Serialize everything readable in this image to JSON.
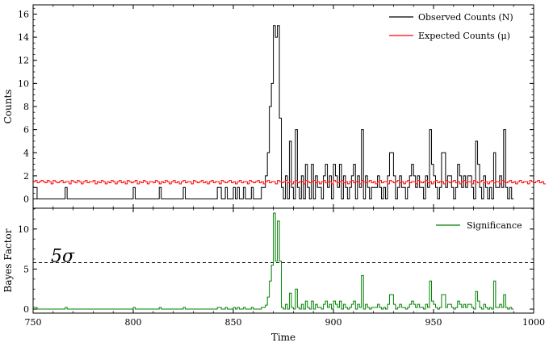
{
  "chart_data": [
    {
      "id": "top",
      "type": "line",
      "step": true,
      "ylabel": "Counts",
      "xlim": [
        750,
        1000
      ],
      "ylim": [
        -0.8,
        16.8
      ],
      "yticks": [
        0,
        2,
        4,
        6,
        8,
        10,
        12,
        14,
        16
      ],
      "x_start": 750,
      "bin_width": 1,
      "series": [
        {
          "name": "Observed Counts (N)",
          "color": "#000000",
          "values": [
            1,
            1,
            0,
            0,
            0,
            0,
            0,
            0,
            0,
            0,
            0,
            0,
            0,
            0,
            0,
            0,
            1,
            0,
            0,
            0,
            0,
            0,
            0,
            0,
            0,
            0,
            0,
            0,
            0,
            0,
            0,
            0,
            0,
            0,
            0,
            0,
            0,
            0,
            0,
            0,
            0,
            0,
            0,
            0,
            0,
            0,
            0,
            0,
            0,
            0,
            1,
            0,
            0,
            0,
            0,
            0,
            0,
            0,
            0,
            0,
            0,
            0,
            0,
            1,
            0,
            0,
            0,
            0,
            0,
            0,
            0,
            0,
            0,
            0,
            0,
            1,
            0,
            0,
            0,
            0,
            0,
            0,
            0,
            0,
            0,
            0,
            0,
            0,
            0,
            0,
            0,
            0,
            1,
            1,
            0,
            0,
            1,
            0,
            0,
            0,
            1,
            0,
            1,
            0,
            0,
            1,
            0,
            0,
            0,
            1,
            0,
            0,
            0,
            0,
            1,
            1,
            2,
            4,
            8,
            10,
            15,
            14,
            15,
            7,
            1,
            0,
            2,
            0,
            5,
            1,
            0,
            6,
            1,
            0,
            2,
            0,
            3,
            1,
            0,
            3,
            0,
            2,
            1,
            1,
            0,
            2,
            3,
            1,
            2,
            0,
            3,
            2,
            1,
            3,
            0,
            2,
            1,
            0,
            1,
            2,
            3,
            0,
            2,
            1,
            6,
            0,
            2,
            1,
            0,
            1,
            1,
            1,
            2,
            1,
            0,
            1,
            0,
            2,
            4,
            4,
            2,
            0,
            1,
            2,
            1,
            1,
            0,
            1,
            2,
            3,
            2,
            1,
            2,
            1,
            1,
            0,
            2,
            1,
            6,
            3,
            2,
            1,
            0,
            1,
            4,
            4,
            1,
            2,
            2,
            1,
            0,
            1,
            3,
            2,
            1,
            2,
            1,
            2,
            2,
            1,
            0,
            5,
            3,
            1,
            0,
            2,
            1,
            0,
            1,
            0,
            4,
            1,
            1,
            2,
            1,
            6,
            1,
            0,
            1,
            0
          ],
          "line_width": 1
        },
        {
          "name": "Expected Counts (μ)",
          "color": "#ff0000",
          "values": [
            1.5,
            1.6,
            1.4,
            1.5,
            1.6,
            1.5,
            1.4,
            1.6,
            1.5,
            1.3,
            1.6,
            1.5,
            1.4,
            1.5,
            1.6,
            1.4,
            1.5,
            1.5,
            1.3,
            1.6,
            1.5,
            1.4,
            1.6,
            1.5,
            1.3,
            1.5,
            1.6,
            1.4,
            1.5,
            1.5,
            1.6,
            1.3,
            1.5,
            1.4,
            1.6,
            1.5,
            1.3,
            1.5,
            1.4,
            1.6,
            1.5,
            1.3,
            1.5,
            1.6,
            1.4,
            1.5,
            1.3,
            1.6,
            1.5,
            1.4,
            1.5,
            1.6,
            1.3,
            1.5,
            1.4,
            1.6,
            1.5,
            1.3,
            1.5,
            1.5,
            1.4,
            1.6,
            1.5,
            1.3,
            1.5,
            1.4,
            1.6,
            1.5,
            1.3,
            1.5,
            1.6,
            1.4,
            1.5,
            1.3,
            1.5,
            1.6,
            1.4,
            1.5,
            1.5,
            1.3,
            1.6,
            1.5,
            1.4,
            1.5,
            1.6,
            1.4,
            1.5,
            1.3,
            1.5,
            1.6,
            1.4,
            1.5,
            1.5,
            1.3,
            1.6,
            1.5,
            1.4,
            1.5,
            1.6,
            1.4,
            1.5,
            1.3,
            1.5,
            1.6,
            1.4,
            1.5,
            1.5,
            1.3,
            1.6,
            1.5,
            1.4,
            1.5,
            1.6,
            1.4,
            1.5,
            1.3,
            1.5,
            1.6,
            1.4,
            1.5,
            1.5,
            1.3,
            1.6,
            1.5,
            1.4,
            1.5,
            1.6,
            1.4,
            1.5,
            1.3,
            1.5,
            1.6,
            1.4,
            1.5,
            1.5,
            1.3,
            1.6,
            1.5,
            1.4,
            1.5,
            1.6,
            1.4,
            1.5,
            1.3,
            1.5,
            1.6,
            1.4,
            1.5,
            1.5,
            1.3,
            1.6,
            1.5,
            1.4,
            1.5,
            1.6,
            1.4,
            1.5,
            1.3,
            1.5,
            1.6,
            1.4,
            1.5,
            1.5,
            1.3,
            1.6,
            1.5,
            1.4,
            1.5,
            1.6,
            1.4,
            1.5,
            1.3,
            1.5,
            1.6,
            1.4,
            1.5,
            1.5,
            1.3,
            1.6,
            1.5,
            1.4,
            1.5,
            1.6,
            1.4,
            1.5,
            1.3,
            1.5,
            1.6,
            1.4,
            1.5,
            1.5,
            1.3,
            1.6,
            1.5,
            1.4,
            1.5,
            1.6,
            1.4,
            1.5,
            1.3,
            1.5,
            1.6,
            1.4,
            1.5,
            1.5,
            1.3,
            1.6,
            1.5,
            1.4,
            1.5,
            1.6,
            1.4,
            1.5,
            1.3,
            1.5,
            1.6,
            1.4,
            1.5,
            1.5,
            1.3,
            1.6,
            1.5,
            1.4,
            1.5,
            1.6,
            1.4,
            1.5,
            1.3,
            1.5,
            1.6,
            1.4,
            1.5,
            1.5,
            1.3,
            1.6,
            1.5,
            1.4,
            1.5,
            1.6,
            1.4,
            1.5,
            1.3,
            1.5,
            1.6,
            1.4,
            1.5,
            1.5,
            1.3,
            1.6,
            1.5,
            1.4,
            1.5,
            1.6,
            1.4,
            1.5,
            1.3
          ],
          "line_width": 1
        }
      ],
      "legend": {
        "position": "top-right"
      }
    },
    {
      "id": "bottom",
      "type": "line",
      "step": true,
      "xlabel": "Time",
      "ylabel": "Bayes Factor",
      "xlim": [
        750,
        1000
      ],
      "ylim": [
        -0.5,
        12.6
      ],
      "yticks": [
        0,
        5,
        10
      ],
      "xticks": [
        750,
        800,
        850,
        900,
        950,
        1000
      ],
      "x_start": 750,
      "bin_width": 1,
      "series": [
        {
          "name": "Significance",
          "color": "#008000",
          "values": [
            0.2,
            0.2,
            0,
            0,
            0,
            0,
            0,
            0,
            0,
            0,
            0,
            0,
            0,
            0,
            0,
            0,
            0.2,
            0,
            0,
            0,
            0,
            0,
            0,
            0,
            0,
            0,
            0,
            0,
            0,
            0,
            0,
            0,
            0,
            0,
            0,
            0,
            0,
            0,
            0,
            0,
            0,
            0,
            0,
            0,
            0,
            0,
            0,
            0,
            0,
            0,
            0.2,
            0,
            0,
            0,
            0,
            0,
            0,
            0,
            0,
            0,
            0,
            0,
            0,
            0.2,
            0,
            0,
            0,
            0,
            0,
            0,
            0,
            0,
            0,
            0,
            0,
            0.2,
            0,
            0,
            0,
            0,
            0,
            0,
            0,
            0,
            0,
            0,
            0,
            0,
            0,
            0,
            0,
            0,
            0.2,
            0.2,
            0,
            0,
            0.2,
            0,
            0,
            0,
            0.2,
            0,
            0.2,
            0,
            0,
            0.2,
            0,
            0,
            0,
            0.2,
            0,
            0,
            0,
            0,
            0.2,
            0.2,
            0.5,
            1.5,
            3.5,
            5.5,
            12,
            6,
            11,
            6,
            0.2,
            0,
            0.6,
            0,
            2,
            0.2,
            0,
            2.5,
            0.2,
            0,
            0.6,
            0,
            1,
            0.2,
            0,
            1,
            0,
            0.6,
            0.2,
            0.2,
            0,
            0.6,
            1,
            0.2,
            0.6,
            0,
            1,
            0.6,
            0.2,
            1,
            0,
            0.6,
            0.2,
            0,
            0.2,
            0.6,
            1,
            0,
            0.6,
            0.2,
            4.2,
            0,
            0.6,
            0.2,
            0,
            0.2,
            0.2,
            0.2,
            0.6,
            0.2,
            0,
            0.2,
            0,
            0.6,
            1.8,
            1.8,
            0.6,
            0,
            0.2,
            0.6,
            0.2,
            0.2,
            0,
            0.2,
            0.6,
            1,
            0.6,
            0.2,
            0.6,
            0.2,
            0.2,
            0,
            0.6,
            0.2,
            3.5,
            1,
            0.6,
            0.2,
            0,
            0.2,
            1.8,
            1.8,
            0.2,
            0.6,
            0.6,
            0.2,
            0,
            0.2,
            1,
            0.6,
            0.2,
            0.6,
            0.2,
            0.6,
            0.6,
            0.2,
            0,
            2.2,
            1,
            0.2,
            0,
            0.6,
            0.2,
            0,
            0.2,
            0,
            3.5,
            0.2,
            0.2,
            0.6,
            0.2,
            1.8,
            0.2,
            0,
            0.2,
            0
          ],
          "line_width": 1
        }
      ],
      "threshold": {
        "value": 5.8,
        "label": "5σ",
        "style": "dashed",
        "color": "#000000"
      },
      "legend": {
        "position": "top-right"
      }
    }
  ]
}
